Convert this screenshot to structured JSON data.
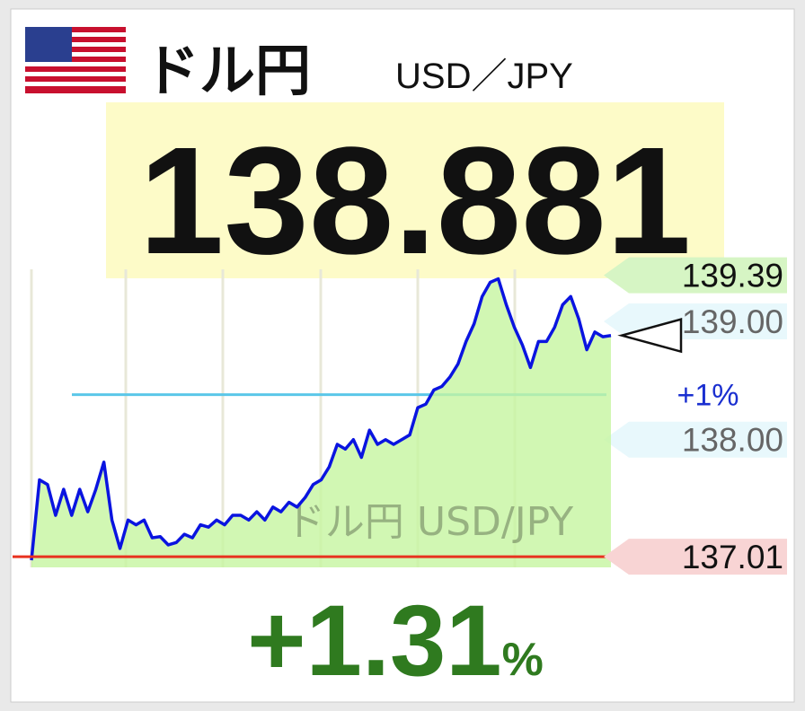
{
  "header": {
    "title": "ドル円",
    "subtitle": "USD／JPY"
  },
  "change": {
    "value": "+1.31",
    "unit": "%"
  },
  "chart_data": {
    "type": "line",
    "watermark": "ドル円 USD/JPY",
    "last": 138.881,
    "values": [
      136.98,
      137.66,
      137.62,
      137.36,
      137.58,
      137.36,
      137.58,
      137.39,
      137.58,
      137.81,
      137.32,
      137.08,
      137.32,
      137.28,
      137.32,
      137.17,
      137.18,
      137.11,
      137.13,
      137.2,
      137.17,
      137.28,
      137.26,
      137.32,
      137.28,
      137.36,
      137.36,
      137.32,
      137.39,
      137.32,
      137.43,
      137.39,
      137.47,
      137.43,
      137.51,
      137.62,
      137.66,
      137.77,
      137.96,
      137.92,
      138.0,
      137.85,
      138.08,
      137.96,
      138.0,
      137.96,
      138.0,
      138.04,
      138.27,
      138.3,
      138.42,
      138.45,
      138.53,
      138.64,
      138.83,
      138.98,
      139.21,
      139.33,
      139.36,
      139.14,
      138.95,
      138.8,
      138.61,
      138.83,
      138.83,
      138.95,
      139.14,
      139.21,
      139.02,
      138.76,
      138.91,
      138.87,
      138.88
    ],
    "color": "#0a14e0",
    "area_color": "#c6f5a0",
    "ylim": [
      136.92,
      139.44
    ],
    "yticks": [
      {
        "value": 139,
        "label": "139.00"
      },
      {
        "value": 138,
        "label": "138.00"
      }
    ],
    "high": {
      "value": 139.39,
      "label": "139.39"
    },
    "low": {
      "value": 137.01,
      "label": "137.01"
    },
    "target": {
      "value": 138.38,
      "label": "+1%"
    }
  }
}
